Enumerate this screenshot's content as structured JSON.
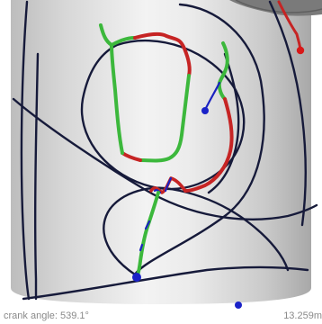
{
  "viewer": {
    "crank_label": "crank angle: 539.1°",
    "distance_label": "13.259m"
  },
  "colors": {
    "background": "#ffffff",
    "cylinder_light": "#f2f2f2",
    "cylinder_mid": "#c4c4c4",
    "cylinder_dark": "#8c8c8c",
    "cap_dark": "#6f6f6f",
    "outline": "#161a3a",
    "trail_green": "#3cb83c",
    "trail_red": "#c62424",
    "trail_blue": "#1a22c0",
    "marker_blue": "#1a22c8",
    "marker_red": "#d81818",
    "readout_text": "#8a8a8a"
  }
}
